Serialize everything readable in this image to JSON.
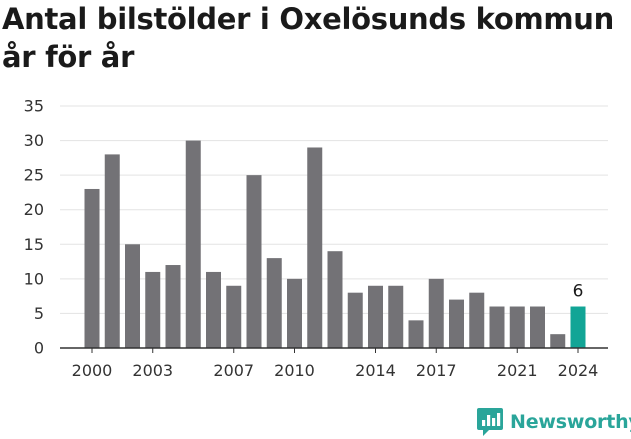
{
  "title": "Antal bilstölder i Oxelösunds kommun år för år",
  "brand": {
    "name": "Newsworthy",
    "color": "#2aa59a",
    "icon": "newsworthy-chart-bubble-icon"
  },
  "colors": {
    "bar": "#737276",
    "highlight": "#12a596",
    "grid": "#e3e3e3",
    "axis": "#333333"
  },
  "chart_data": {
    "type": "bar",
    "title": "Antal bilstölder i Oxelösunds kommun år för år",
    "xlabel": "",
    "ylabel": "",
    "categories": [
      2000,
      2001,
      2002,
      2003,
      2004,
      2005,
      2006,
      2007,
      2008,
      2009,
      2010,
      2011,
      2012,
      2013,
      2014,
      2015,
      2016,
      2017,
      2018,
      2019,
      2020,
      2021,
      2022,
      2023,
      2024
    ],
    "values": [
      23,
      28,
      15,
      11,
      12,
      30,
      11,
      9,
      25,
      13,
      10,
      29,
      14,
      8,
      9,
      9,
      4,
      10,
      7,
      8,
      6,
      6,
      6,
      2,
      6
    ],
    "ylim": [
      0,
      35
    ],
    "yticks": [
      0,
      5,
      10,
      15,
      20,
      25,
      30,
      35
    ],
    "xtick_labels": [
      "2000",
      "2003",
      "2007",
      "2010",
      "2014",
      "2017",
      "2021",
      "2024"
    ],
    "highlight_category": 2024,
    "annotations": [
      {
        "category": 2024,
        "text": "6"
      }
    ],
    "grid": true,
    "legend": "none"
  }
}
